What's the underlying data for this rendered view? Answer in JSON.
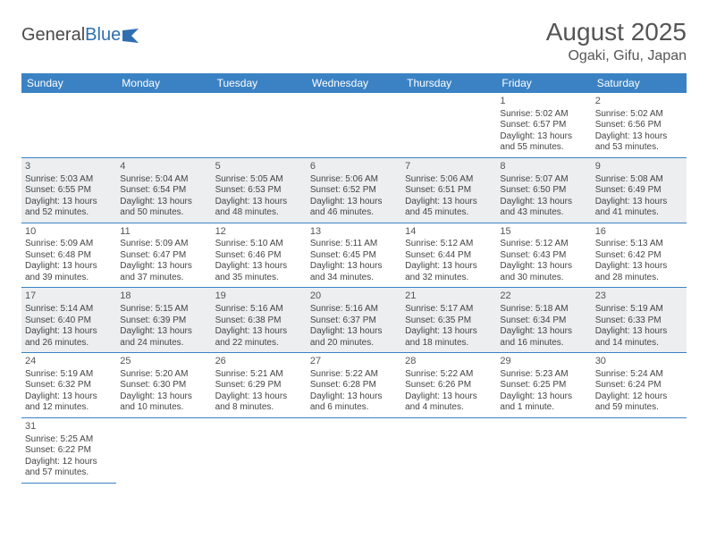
{
  "logo": {
    "part1": "General",
    "part2": "Blue"
  },
  "title": {
    "month": "August 2025",
    "location": "Ogaki, Gifu, Japan"
  },
  "colors": {
    "header_bg": "#3b82c4",
    "header_fg": "#ffffff",
    "shaded_bg": "#eceef0",
    "rule": "#3b82c4",
    "text": "#444444"
  },
  "day_headers": [
    "Sunday",
    "Monday",
    "Tuesday",
    "Wednesday",
    "Thursday",
    "Friday",
    "Saturday"
  ],
  "weeks": [
    [
      null,
      null,
      null,
      null,
      null,
      {
        "n": "1",
        "sr": "Sunrise: 5:02 AM",
        "ss": "Sunset: 6:57 PM",
        "d1": "Daylight: 13 hours",
        "d2": "and 55 minutes."
      },
      {
        "n": "2",
        "sr": "Sunrise: 5:02 AM",
        "ss": "Sunset: 6:56 PM",
        "d1": "Daylight: 13 hours",
        "d2": "and 53 minutes."
      }
    ],
    [
      {
        "n": "3",
        "sr": "Sunrise: 5:03 AM",
        "ss": "Sunset: 6:55 PM",
        "d1": "Daylight: 13 hours",
        "d2": "and 52 minutes."
      },
      {
        "n": "4",
        "sr": "Sunrise: 5:04 AM",
        "ss": "Sunset: 6:54 PM",
        "d1": "Daylight: 13 hours",
        "d2": "and 50 minutes."
      },
      {
        "n": "5",
        "sr": "Sunrise: 5:05 AM",
        "ss": "Sunset: 6:53 PM",
        "d1": "Daylight: 13 hours",
        "d2": "and 48 minutes."
      },
      {
        "n": "6",
        "sr": "Sunrise: 5:06 AM",
        "ss": "Sunset: 6:52 PM",
        "d1": "Daylight: 13 hours",
        "d2": "and 46 minutes."
      },
      {
        "n": "7",
        "sr": "Sunrise: 5:06 AM",
        "ss": "Sunset: 6:51 PM",
        "d1": "Daylight: 13 hours",
        "d2": "and 45 minutes."
      },
      {
        "n": "8",
        "sr": "Sunrise: 5:07 AM",
        "ss": "Sunset: 6:50 PM",
        "d1": "Daylight: 13 hours",
        "d2": "and 43 minutes."
      },
      {
        "n": "9",
        "sr": "Sunrise: 5:08 AM",
        "ss": "Sunset: 6:49 PM",
        "d1": "Daylight: 13 hours",
        "d2": "and 41 minutes."
      }
    ],
    [
      {
        "n": "10",
        "sr": "Sunrise: 5:09 AM",
        "ss": "Sunset: 6:48 PM",
        "d1": "Daylight: 13 hours",
        "d2": "and 39 minutes."
      },
      {
        "n": "11",
        "sr": "Sunrise: 5:09 AM",
        "ss": "Sunset: 6:47 PM",
        "d1": "Daylight: 13 hours",
        "d2": "and 37 minutes."
      },
      {
        "n": "12",
        "sr": "Sunrise: 5:10 AM",
        "ss": "Sunset: 6:46 PM",
        "d1": "Daylight: 13 hours",
        "d2": "and 35 minutes."
      },
      {
        "n": "13",
        "sr": "Sunrise: 5:11 AM",
        "ss": "Sunset: 6:45 PM",
        "d1": "Daylight: 13 hours",
        "d2": "and 34 minutes."
      },
      {
        "n": "14",
        "sr": "Sunrise: 5:12 AM",
        "ss": "Sunset: 6:44 PM",
        "d1": "Daylight: 13 hours",
        "d2": "and 32 minutes."
      },
      {
        "n": "15",
        "sr": "Sunrise: 5:12 AM",
        "ss": "Sunset: 6:43 PM",
        "d1": "Daylight: 13 hours",
        "d2": "and 30 minutes."
      },
      {
        "n": "16",
        "sr": "Sunrise: 5:13 AM",
        "ss": "Sunset: 6:42 PM",
        "d1": "Daylight: 13 hours",
        "d2": "and 28 minutes."
      }
    ],
    [
      {
        "n": "17",
        "sr": "Sunrise: 5:14 AM",
        "ss": "Sunset: 6:40 PM",
        "d1": "Daylight: 13 hours",
        "d2": "and 26 minutes."
      },
      {
        "n": "18",
        "sr": "Sunrise: 5:15 AM",
        "ss": "Sunset: 6:39 PM",
        "d1": "Daylight: 13 hours",
        "d2": "and 24 minutes."
      },
      {
        "n": "19",
        "sr": "Sunrise: 5:16 AM",
        "ss": "Sunset: 6:38 PM",
        "d1": "Daylight: 13 hours",
        "d2": "and 22 minutes."
      },
      {
        "n": "20",
        "sr": "Sunrise: 5:16 AM",
        "ss": "Sunset: 6:37 PM",
        "d1": "Daylight: 13 hours",
        "d2": "and 20 minutes."
      },
      {
        "n": "21",
        "sr": "Sunrise: 5:17 AM",
        "ss": "Sunset: 6:35 PM",
        "d1": "Daylight: 13 hours",
        "d2": "and 18 minutes."
      },
      {
        "n": "22",
        "sr": "Sunrise: 5:18 AM",
        "ss": "Sunset: 6:34 PM",
        "d1": "Daylight: 13 hours",
        "d2": "and 16 minutes."
      },
      {
        "n": "23",
        "sr": "Sunrise: 5:19 AM",
        "ss": "Sunset: 6:33 PM",
        "d1": "Daylight: 13 hours",
        "d2": "and 14 minutes."
      }
    ],
    [
      {
        "n": "24",
        "sr": "Sunrise: 5:19 AM",
        "ss": "Sunset: 6:32 PM",
        "d1": "Daylight: 13 hours",
        "d2": "and 12 minutes."
      },
      {
        "n": "25",
        "sr": "Sunrise: 5:20 AM",
        "ss": "Sunset: 6:30 PM",
        "d1": "Daylight: 13 hours",
        "d2": "and 10 minutes."
      },
      {
        "n": "26",
        "sr": "Sunrise: 5:21 AM",
        "ss": "Sunset: 6:29 PM",
        "d1": "Daylight: 13 hours",
        "d2": "and 8 minutes."
      },
      {
        "n": "27",
        "sr": "Sunrise: 5:22 AM",
        "ss": "Sunset: 6:28 PM",
        "d1": "Daylight: 13 hours",
        "d2": "and 6 minutes."
      },
      {
        "n": "28",
        "sr": "Sunrise: 5:22 AM",
        "ss": "Sunset: 6:26 PM",
        "d1": "Daylight: 13 hours",
        "d2": "and 4 minutes."
      },
      {
        "n": "29",
        "sr": "Sunrise: 5:23 AM",
        "ss": "Sunset: 6:25 PM",
        "d1": "Daylight: 13 hours",
        "d2": "and 1 minute."
      },
      {
        "n": "30",
        "sr": "Sunrise: 5:24 AM",
        "ss": "Sunset: 6:24 PM",
        "d1": "Daylight: 12 hours",
        "d2": "and 59 minutes."
      }
    ],
    [
      {
        "n": "31",
        "sr": "Sunrise: 5:25 AM",
        "ss": "Sunset: 6:22 PM",
        "d1": "Daylight: 12 hours",
        "d2": "and 57 minutes."
      },
      null,
      null,
      null,
      null,
      null,
      null
    ]
  ]
}
